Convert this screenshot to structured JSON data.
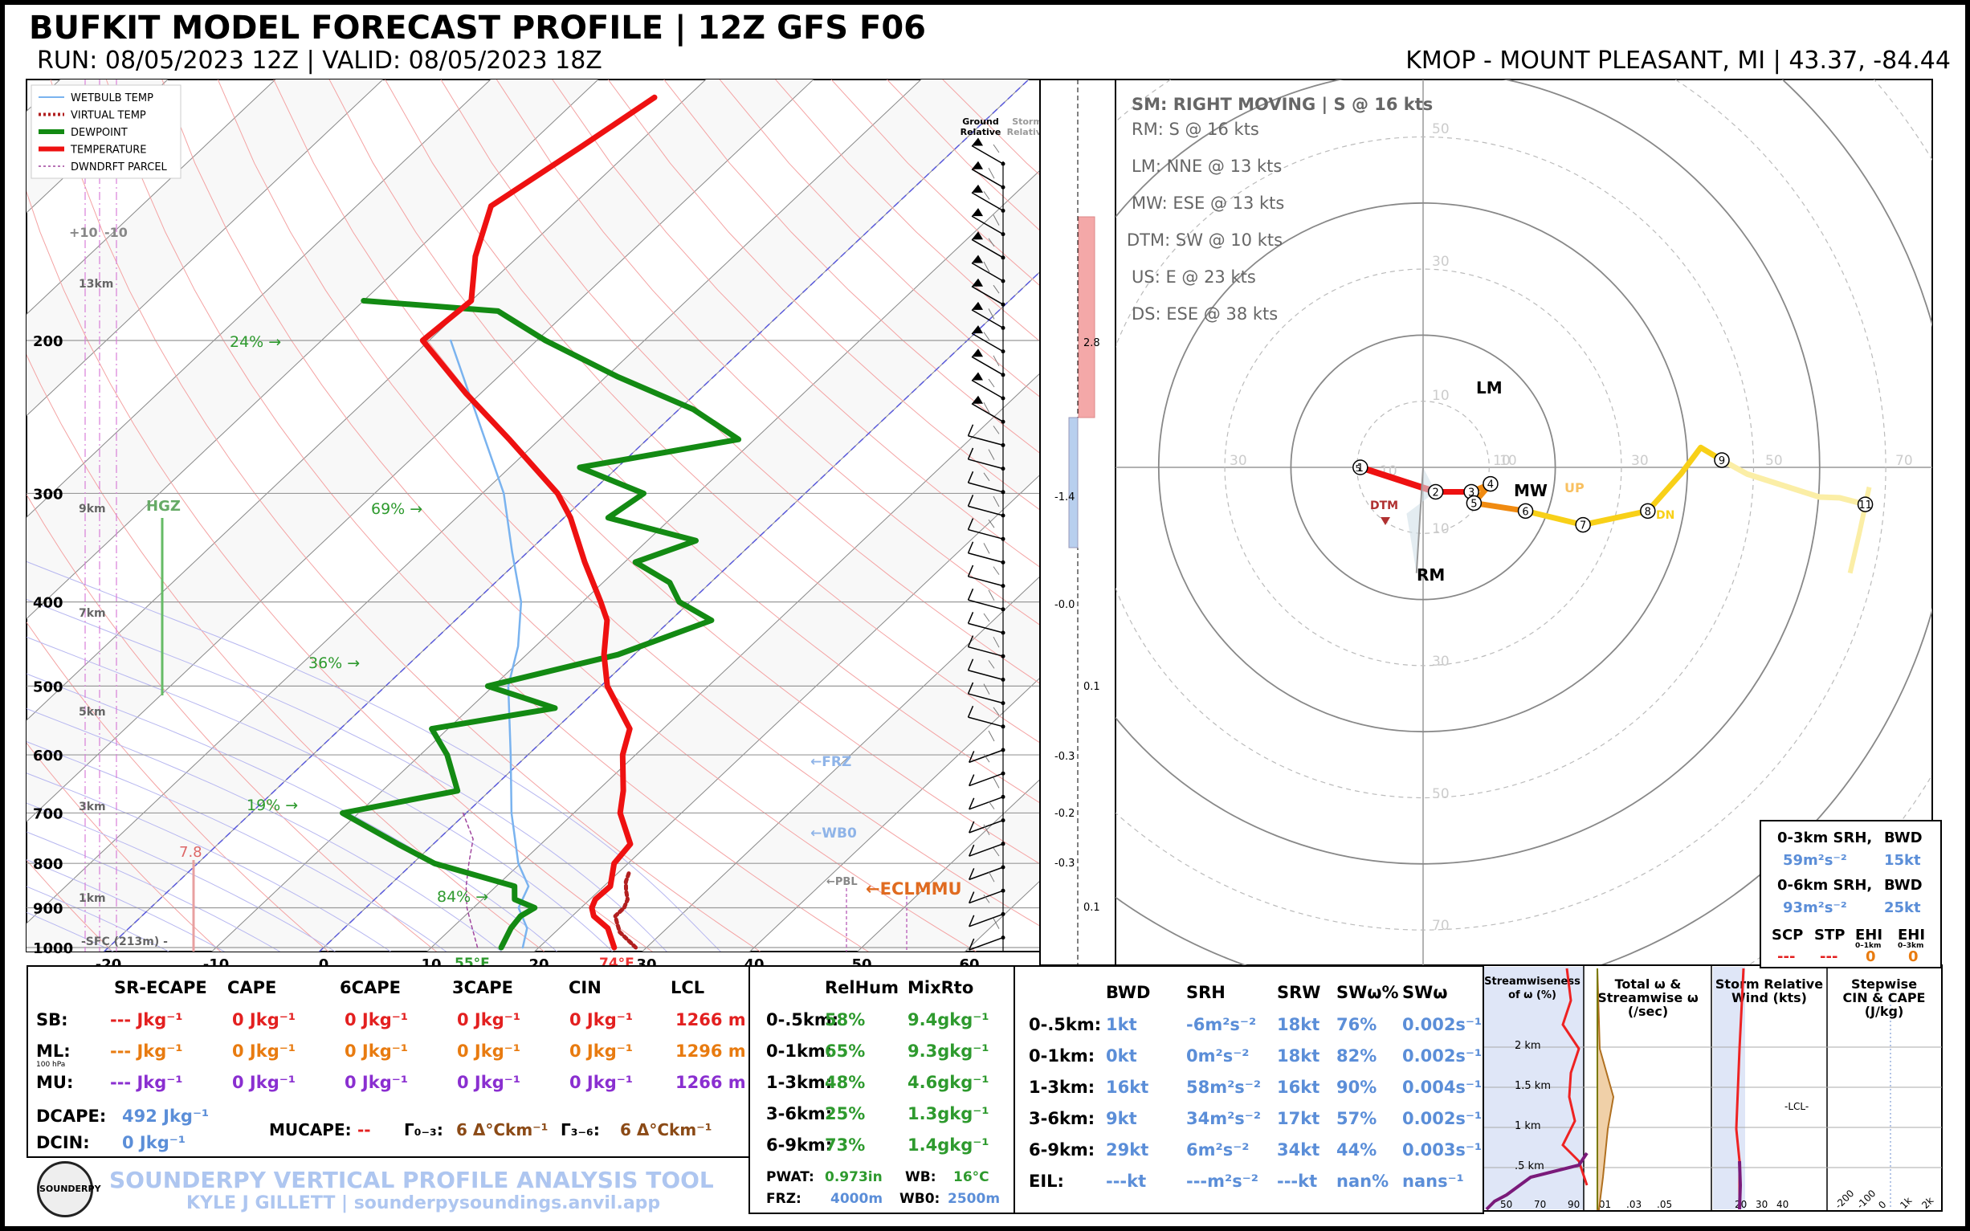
{
  "header": {
    "title": "BUFKIT MODEL FORECAST PROFILE | 12Z GFS F06",
    "run": "RUN: 08/05/2023 12Z  |  VALID: 08/05/2023 18Z",
    "location": "KMOP - MOUNT PLEASANT, MI | 43.37, -84.44"
  },
  "chart_data": [
    {
      "type": "line",
      "name": "skew-t",
      "legend": [
        "WETBULB TEMP",
        "VIRTUAL TEMP",
        "DEWPOINT",
        "TEMPERATURE",
        "DWNDRFT PARCEL"
      ],
      "pressure_ticks": [
        "200",
        "300",
        "400",
        "500",
        "600",
        "700",
        "800",
        "900",
        "1000"
      ],
      "temp_ticks": [
        "-20",
        "-10",
        "0",
        "10",
        "20",
        "30",
        "40",
        "50",
        "60"
      ],
      "height_labels": [
        "13km",
        "9km",
        "7km",
        "5km",
        "3km",
        "1km",
        "-SFC (213m) -"
      ],
      "rh_labels": [
        "24% →",
        "69% →",
        "36% →",
        "19% →",
        "84% →"
      ],
      "temperature_profile": {
        "p": [
          1000,
          950,
          920,
          900,
          880,
          850,
          800,
          760,
          700,
          660,
          600,
          560,
          500,
          460,
          420,
          400,
          360,
          320,
          300,
          260,
          230,
          200,
          180,
          160,
          140,
          120,
          105
        ],
        "t": [
          27,
          24.5,
          22,
          21,
          20.5,
          20.6,
          18.7,
          18.3,
          14.3,
          12.4,
          8.8,
          6.9,
          0.6,
          -2.8,
          -5.9,
          -8.3,
          -13.7,
          -19.4,
          -23,
          -32.8,
          -41.4,
          -50.6,
          -50,
          -54,
          -57.5,
          -55,
          -53
        ]
      },
      "dewpoint_profile": {
        "p": [
          1000,
          950,
          920,
          900,
          880,
          850,
          800,
          760,
          700,
          660,
          600,
          560,
          530,
          500,
          460,
          420,
          400,
          380,
          360,
          340,
          320,
          300,
          280,
          260,
          240,
          220,
          200,
          185,
          180
        ],
        "td": [
          16.5,
          15.5,
          15.2,
          15.7,
          13,
          11.7,
          2,
          -3.3,
          -11.5,
          -3,
          -7.5,
          -11.5,
          -2.1,
          -10.5,
          -1.5,
          3.8,
          -1,
          -3.8,
          -9,
          -5.5,
          -15.9,
          -15,
          -23.5,
          -11.5,
          -18.7,
          -29,
          -39.2,
          -46.5,
          -60
        ]
      },
      "wetbulb_profile": {
        "p": [
          1000,
          950,
          900,
          850,
          800,
          700,
          600,
          500,
          450,
          400,
          350,
          300,
          250,
          200
        ],
        "tw": [
          18.5,
          17,
          14.2,
          13,
          9.8,
          4.2,
          -1.6,
          -8.6,
          -11.6,
          -15.7,
          -21.5,
          -28,
          -37,
          -48
        ]
      },
      "virtual_temp_profile": {
        "p": [
          1000,
          960,
          940,
          920,
          900,
          880,
          860,
          840,
          820
        ],
        "tv": [
          29,
          26,
          25,
          24,
          24,
          23.5,
          22.5,
          21.6,
          21
        ]
      },
      "downdraft_parcel_profile": {
        "p": [
          700,
          750,
          800,
          850,
          900,
          950,
          1000
        ],
        "t": [
          -0.3,
          3.2,
          5.2,
          7.2,
          9.4,
          11.9,
          14.3
        ]
      },
      "hgz_label": "HGZ",
      "lapse_value": "7.8",
      "sfc_temp": "74°F",
      "sfc_dewpoint": "55°F",
      "markers": [
        "←FRZ",
        "←WB0",
        "←PBL",
        "←ECLMMU"
      ],
      "wind_columns": [
        "Ground Relative",
        "Storm Relative"
      ],
      "omega_labels": [
        "2.8",
        "-1.4",
        "-0.0",
        "0.1",
        "-0.3",
        "-0.2",
        "-0.3",
        "0.1"
      ],
      "isotherm_labels": [
        "+10",
        "-10"
      ]
    },
    {
      "type": "scatter",
      "name": "hodograph",
      "rings": [
        "10",
        "30",
        "50",
        "70"
      ],
      "axis_labels": [
        "30",
        "10",
        "10",
        "30",
        "50",
        "70",
        "50",
        "30",
        "10",
        "10",
        "30",
        "50",
        "70"
      ],
      "points": {
        "1": [
          -9.5,
          0.0
        ],
        "2": [
          1.9,
          -3.7
        ],
        "3": [
          7.3,
          -3.7
        ],
        "4": [
          10.2,
          -2.5
        ],
        "5": [
          7.7,
          -5.4
        ],
        "6": [
          15.5,
          -6.6
        ],
        "7": [
          24.2,
          -8.7
        ],
        "8": [
          34.0,
          -6.6
        ],
        "9": [
          45.2,
          1.1
        ],
        "11": [
          66.9,
          -5.6
        ]
      },
      "labels": {
        "lm": "LM",
        "mw": "MW",
        "rm": "RM",
        "dtm": "DTM",
        "up": "UP",
        "dn": "DN"
      },
      "info": [
        "SM: RIGHT MOVING | S @ 16 kts",
        "RM: S @ 16 kts",
        "LM: NNE @ 13 kts",
        "MW: ESE @ 13 kts",
        "DTM: SW @ 10 kts",
        "US: E @ 23 kts",
        "DS: ESE @ 38 kts"
      ],
      "srh_box": {
        "l1": "0-3km SRH,",
        "b1": "BWD",
        "v1": "59m²s⁻²",
        "w1": "15kt",
        "l2": "0-6km SRH,",
        "b2": "BWD",
        "v2": "93m²s⁻²",
        "w2": "25kt",
        "h_scp": "SCP",
        "h_stp": "STP",
        "h_ehi1": "EHI",
        "h_ehi1s": "0–1km",
        "h_ehi3": "EHI",
        "h_ehi3s": "0–3km",
        "scp": "---",
        "stp": "---",
        "ehi1": "0",
        "ehi3": "0"
      }
    },
    {
      "type": "line",
      "name": "streamwiseness-panels",
      "titles": [
        "Streamwiseness of ω (%)",
        "Total ω & Streamwise ω (/sec)",
        "Storm Relative Wind (kts)",
        "Stepwise CIN & CAPE (J/kg)"
      ],
      "height_ticks": [
        "2 km",
        "1.5 km",
        "1 km",
        ".5 km"
      ],
      "xt1": [
        "50",
        "70",
        "90"
      ],
      "xt2": [
        ".01",
        ".03",
        ".05"
      ],
      "xt3": [
        "20",
        "30",
        "40"
      ],
      "xt4": [
        "-200",
        "-100",
        "0",
        "1k",
        "2k"
      ],
      "lcl": "-LCL-"
    }
  ],
  "parcels": {
    "headers": [
      "SR-ECAPE",
      "CAPE",
      "6CAPE",
      "3CAPE",
      "CIN",
      "LCL"
    ],
    "rows": [
      {
        "label": "SB:",
        "vals": [
          "--- Jkg⁻¹",
          "0 Jkg⁻¹",
          "0 Jkg⁻¹",
          "0 Jkg⁻¹",
          "0 Jkg⁻¹",
          "1266 m"
        ]
      },
      {
        "label": "ML:",
        "sub": "100 hPa",
        "vals": [
          "--- Jkg⁻¹",
          "0 Jkg⁻¹",
          "0 Jkg⁻¹",
          "0 Jkg⁻¹",
          "0 Jkg⁻¹",
          "1296 m"
        ]
      },
      {
        "label": "MU:",
        "vals": [
          "--- Jkg⁻¹",
          "0 Jkg⁻¹",
          "0 Jkg⁻¹",
          "0 Jkg⁻¹",
          "0 Jkg⁻¹",
          "1266 m"
        ]
      }
    ],
    "dcape_label": "DCAPE:",
    "dcape": "492 Jkg⁻¹",
    "dcin_label": "DCIN:",
    "dcin": "0 Jkg⁻¹",
    "mucape_label": "MUCAPE:",
    "mucape": "--",
    "g03_label": "Γ₀₋₃:",
    "g03": "6 Δ°Ckm⁻¹",
    "g36_label": "Γ₃₋₆:",
    "g36": "6 Δ°Ckm⁻¹"
  },
  "moisture": {
    "headers": [
      "RelHum",
      "MixRto"
    ],
    "rows": [
      {
        "label": "0-.5km:",
        "rh": "58%",
        "mr": "9.4gkg⁻¹"
      },
      {
        "label": "0-1km:",
        "rh": "65%",
        "mr": "9.3gkg⁻¹"
      },
      {
        "label": "1-3km:",
        "rh": "48%",
        "mr": "4.6gkg⁻¹"
      },
      {
        "label": "3-6km:",
        "rh": "25%",
        "mr": "1.3gkg⁻¹"
      },
      {
        "label": "6-9km:",
        "rh": "73%",
        "mr": "1.4gkg⁻¹"
      }
    ],
    "pwat_label": "PWAT:",
    "pwat": "0.973in",
    "wb_label": "WB:",
    "wb": "16°C",
    "frz_label": "FRZ:",
    "frz": "4000m",
    "wb0_label": "WB0:",
    "wb0": "2500m"
  },
  "kinematics": {
    "headers": [
      "BWD",
      "SRH",
      "SRW",
      "SWω%",
      "SWω"
    ],
    "rows": [
      {
        "label": "0-.5km:",
        "vals": [
          "1kt",
          "-6m²s⁻²",
          "18kt",
          "76%",
          "0.002s⁻¹"
        ]
      },
      {
        "label": "0-1km:",
        "vals": [
          "0kt",
          "0m²s⁻²",
          "18kt",
          "82%",
          "0.002s⁻¹"
        ]
      },
      {
        "label": "1-3km:",
        "vals": [
          "16kt",
          "58m²s⁻²",
          "16kt",
          "90%",
          "0.004s⁻¹"
        ]
      },
      {
        "label": "3-6km:",
        "vals": [
          "9kt",
          "34m²s⁻²",
          "17kt",
          "57%",
          "0.002s⁻¹"
        ]
      },
      {
        "label": "6-9km:",
        "vals": [
          "29kt",
          "6m²s⁻²",
          "34kt",
          "44%",
          "0.003s⁻¹"
        ]
      },
      {
        "label": "EIL:",
        "vals": [
          "---kt",
          "---m²s⁻²",
          "---kt",
          "nan%",
          "nans⁻¹"
        ]
      }
    ]
  },
  "footer": {
    "logo": "SOUNDERPY",
    "tool": "SOUNDERPY VERTICAL PROFILE ANALYSIS TOOL",
    "credit": "KYLE J GILLETT | sounderpysoundings.anvil.app"
  }
}
